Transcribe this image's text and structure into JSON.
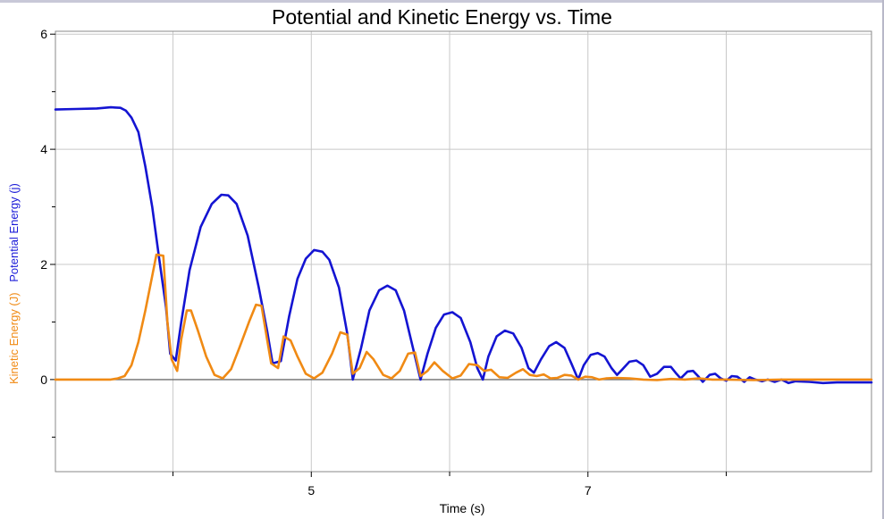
{
  "chart_data": {
    "type": "line",
    "title": "Potential and Kinetic Energy vs. Time",
    "xlabel": "Time (s)",
    "ylabel_parts": [
      "Kinetic Energy (J)",
      "Potential Energy (j)"
    ],
    "xlim": [
      3.15,
      9.05
    ],
    "ylim": [
      -1.6,
      6.05
    ],
    "x_ticks": [
      5,
      7
    ],
    "x_minor_ticks": [
      4,
      6,
      8
    ],
    "y_ticks": [
      0,
      2,
      4,
      6
    ],
    "y_minor_ticks": [
      -1,
      1,
      3,
      5
    ],
    "grid_x": [
      4,
      5,
      6,
      7,
      8
    ],
    "grid_y": [
      0,
      2,
      4,
      6
    ],
    "series": [
      {
        "name": "Potential Energy (j)",
        "color": "#1414d2",
        "points": [
          [
            3.15,
            4.69
          ],
          [
            3.3,
            4.7
          ],
          [
            3.45,
            4.71
          ],
          [
            3.55,
            4.73
          ],
          [
            3.62,
            4.72
          ],
          [
            3.66,
            4.67
          ],
          [
            3.7,
            4.55
          ],
          [
            3.75,
            4.3
          ],
          [
            3.8,
            3.7
          ],
          [
            3.85,
            3.0
          ],
          [
            3.9,
            2.1
          ],
          [
            3.95,
            1.25
          ],
          [
            3.98,
            0.45
          ],
          [
            4.02,
            0.33
          ],
          [
            4.06,
            1.0
          ],
          [
            4.12,
            1.9
          ],
          [
            4.2,
            2.65
          ],
          [
            4.28,
            3.05
          ],
          [
            4.35,
            3.21
          ],
          [
            4.4,
            3.2
          ],
          [
            4.46,
            3.05
          ],
          [
            4.54,
            2.5
          ],
          [
            4.62,
            1.6
          ],
          [
            4.68,
            0.85
          ],
          [
            4.72,
            0.28
          ],
          [
            4.78,
            0.32
          ],
          [
            4.84,
            1.1
          ],
          [
            4.9,
            1.75
          ],
          [
            4.96,
            2.1
          ],
          [
            5.02,
            2.25
          ],
          [
            5.08,
            2.22
          ],
          [
            5.13,
            2.08
          ],
          [
            5.2,
            1.6
          ],
          [
            5.26,
            0.8
          ],
          [
            5.3,
            0.0
          ],
          [
            5.36,
            0.55
          ],
          [
            5.42,
            1.2
          ],
          [
            5.49,
            1.55
          ],
          [
            5.55,
            1.63
          ],
          [
            5.61,
            1.55
          ],
          [
            5.67,
            1.2
          ],
          [
            5.73,
            0.6
          ],
          [
            5.79,
            0.0
          ],
          [
            5.84,
            0.45
          ],
          [
            5.9,
            0.9
          ],
          [
            5.96,
            1.13
          ],
          [
            6.02,
            1.17
          ],
          [
            6.08,
            1.07
          ],
          [
            6.15,
            0.65
          ],
          [
            6.2,
            0.2
          ],
          [
            6.24,
            0.0
          ],
          [
            6.28,
            0.4
          ],
          [
            6.34,
            0.75
          ],
          [
            6.4,
            0.85
          ],
          [
            6.46,
            0.8
          ],
          [
            6.52,
            0.55
          ],
          [
            6.57,
            0.2
          ],
          [
            6.61,
            0.12
          ],
          [
            6.66,
            0.35
          ],
          [
            6.72,
            0.58
          ],
          [
            6.77,
            0.65
          ],
          [
            6.83,
            0.55
          ],
          [
            6.88,
            0.28
          ],
          [
            6.93,
            0.0
          ],
          [
            6.97,
            0.25
          ],
          [
            7.02,
            0.43
          ],
          [
            7.07,
            0.46
          ],
          [
            7.12,
            0.4
          ],
          [
            7.17,
            0.2
          ],
          [
            7.21,
            0.08
          ],
          [
            7.25,
            0.18
          ],
          [
            7.3,
            0.31
          ],
          [
            7.35,
            0.33
          ],
          [
            7.4,
            0.25
          ],
          [
            7.45,
            0.05
          ],
          [
            7.5,
            0.1
          ],
          [
            7.55,
            0.22
          ],
          [
            7.6,
            0.22
          ],
          [
            7.64,
            0.1
          ],
          [
            7.67,
            0.02
          ],
          [
            7.72,
            0.14
          ],
          [
            7.76,
            0.15
          ],
          [
            7.8,
            0.05
          ],
          [
            7.83,
            -0.04
          ],
          [
            7.88,
            0.08
          ],
          [
            7.92,
            0.1
          ],
          [
            7.96,
            0.02
          ],
          [
            8.0,
            -0.02
          ],
          [
            8.04,
            0.06
          ],
          [
            8.08,
            0.05
          ],
          [
            8.13,
            -0.04
          ],
          [
            8.17,
            0.04
          ],
          [
            8.21,
            0.0
          ],
          [
            8.26,
            -0.03
          ],
          [
            8.3,
            0.0
          ],
          [
            8.35,
            -0.04
          ],
          [
            8.4,
            0.0
          ],
          [
            8.45,
            -0.06
          ],
          [
            8.5,
            -0.03
          ],
          [
            8.6,
            -0.04
          ],
          [
            8.7,
            -0.06
          ],
          [
            8.8,
            -0.05
          ],
          [
            8.9,
            -0.05
          ],
          [
            9.05,
            -0.05
          ]
        ]
      },
      {
        "name": "Kinetic Energy (J)",
        "color": "#f08a14",
        "points": [
          [
            3.15,
            0.0
          ],
          [
            3.55,
            0.0
          ],
          [
            3.6,
            0.02
          ],
          [
            3.65,
            0.06
          ],
          [
            3.7,
            0.25
          ],
          [
            3.75,
            0.65
          ],
          [
            3.8,
            1.2
          ],
          [
            3.85,
            1.8
          ],
          [
            3.88,
            2.17
          ],
          [
            3.93,
            2.15
          ],
          [
            3.96,
            1.0
          ],
          [
            3.99,
            0.35
          ],
          [
            4.03,
            0.15
          ],
          [
            4.06,
            0.7
          ],
          [
            4.1,
            1.2
          ],
          [
            4.13,
            1.2
          ],
          [
            4.18,
            0.85
          ],
          [
            4.24,
            0.4
          ],
          [
            4.3,
            0.08
          ],
          [
            4.36,
            0.02
          ],
          [
            4.42,
            0.18
          ],
          [
            4.48,
            0.55
          ],
          [
            4.55,
            1.0
          ],
          [
            4.6,
            1.3
          ],
          [
            4.64,
            1.28
          ],
          [
            4.68,
            0.7
          ],
          [
            4.71,
            0.28
          ],
          [
            4.76,
            0.2
          ],
          [
            4.8,
            0.75
          ],
          [
            4.85,
            0.68
          ],
          [
            4.9,
            0.4
          ],
          [
            4.96,
            0.1
          ],
          [
            5.02,
            0.02
          ],
          [
            5.08,
            0.12
          ],
          [
            5.15,
            0.45
          ],
          [
            5.21,
            0.82
          ],
          [
            5.26,
            0.78
          ],
          [
            5.3,
            0.1
          ],
          [
            5.35,
            0.2
          ],
          [
            5.4,
            0.48
          ],
          [
            5.45,
            0.35
          ],
          [
            5.52,
            0.08
          ],
          [
            5.58,
            0.02
          ],
          [
            5.64,
            0.15
          ],
          [
            5.7,
            0.45
          ],
          [
            5.75,
            0.47
          ],
          [
            5.79,
            0.06
          ],
          [
            5.84,
            0.15
          ],
          [
            5.89,
            0.3
          ],
          [
            5.95,
            0.15
          ],
          [
            6.02,
            0.02
          ],
          [
            6.08,
            0.07
          ],
          [
            6.14,
            0.27
          ],
          [
            6.2,
            0.25
          ],
          [
            6.25,
            0.15
          ],
          [
            6.3,
            0.17
          ],
          [
            6.36,
            0.04
          ],
          [
            6.42,
            0.03
          ],
          [
            6.48,
            0.12
          ],
          [
            6.53,
            0.18
          ],
          [
            6.58,
            0.08
          ],
          [
            6.63,
            0.06
          ],
          [
            6.68,
            0.09
          ],
          [
            6.73,
            0.02
          ],
          [
            6.78,
            0.03
          ],
          [
            6.83,
            0.08
          ],
          [
            6.88,
            0.07
          ],
          [
            6.93,
            0.0
          ],
          [
            6.98,
            0.05
          ],
          [
            7.03,
            0.04
          ],
          [
            7.08,
            0.0
          ],
          [
            7.13,
            0.02
          ],
          [
            7.2,
            0.03
          ],
          [
            7.3,
            0.02
          ],
          [
            7.4,
            0.0
          ],
          [
            7.5,
            -0.01
          ],
          [
            7.6,
            0.01
          ],
          [
            7.7,
            0.0
          ],
          [
            7.8,
            0.02
          ],
          [
            7.9,
            0.0
          ],
          [
            8.0,
            0.0
          ],
          [
            8.2,
            -0.01
          ],
          [
            8.4,
            0.0
          ],
          [
            8.6,
            0.0
          ],
          [
            8.8,
            0.0
          ],
          [
            9.05,
            0.0
          ]
        ]
      }
    ]
  }
}
